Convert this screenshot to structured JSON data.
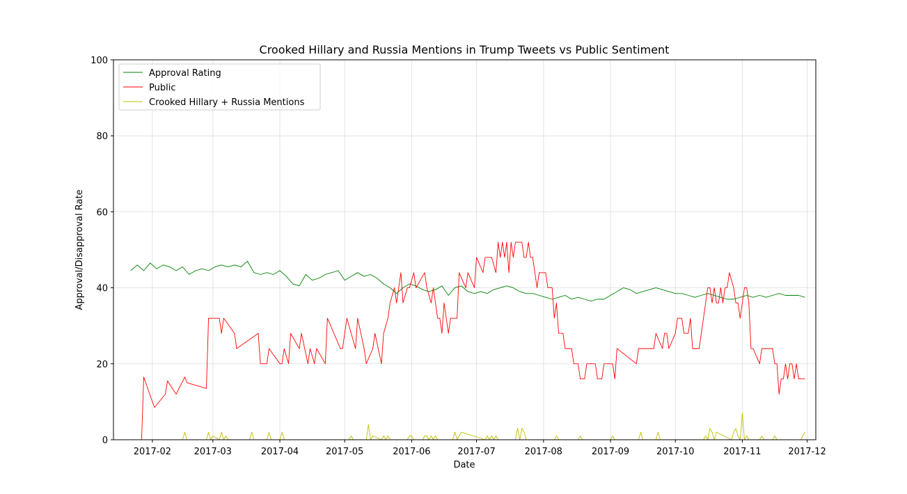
{
  "chart_data": {
    "type": "line",
    "title": "Crooked Hillary and Russia Mentions in Trump Tweets vs Public Sentiment",
    "xlabel": "Date",
    "ylabel": "Approval/Disapproval Rate",
    "xlim": [
      "2017-01-14",
      "2017-12-05"
    ],
    "ylim": [
      0,
      100
    ],
    "grid": true,
    "legend_position": "top-left",
    "x_ticks": [
      "2017-02-01",
      "2017-03-01",
      "2017-04-01",
      "2017-05-01",
      "2017-06-01",
      "2017-07-01",
      "2017-08-01",
      "2017-09-01",
      "2017-10-01",
      "2017-11-01",
      "2017-12-01"
    ],
    "x_tick_labels": [
      "2017-02",
      "2017-03",
      "2017-04",
      "2017-05",
      "2017-06",
      "2017-07",
      "2017-08",
      "2017-09",
      "2017-10",
      "2017-11",
      "2017-12"
    ],
    "y_ticks": [
      0,
      20,
      40,
      60,
      80,
      100
    ],
    "y_tick_labels": [
      "0",
      "20",
      "40",
      "60",
      "80",
      "100"
    ],
    "series": [
      {
        "name": "Approval Rating",
        "color": "#008000",
        "x": [
          "2017-01-22",
          "2017-01-25",
          "2017-01-28",
          "2017-01-31",
          "2017-02-03",
          "2017-02-06",
          "2017-02-09",
          "2017-02-12",
          "2017-02-15",
          "2017-02-18",
          "2017-02-21",
          "2017-02-24",
          "2017-02-27",
          "2017-03-02",
          "2017-03-05",
          "2017-03-08",
          "2017-03-11",
          "2017-03-14",
          "2017-03-17",
          "2017-03-20",
          "2017-03-23",
          "2017-03-26",
          "2017-03-29",
          "2017-04-01",
          "2017-04-04",
          "2017-04-07",
          "2017-04-10",
          "2017-04-13",
          "2017-04-16",
          "2017-04-19",
          "2017-04-22",
          "2017-04-25",
          "2017-04-28",
          "2017-05-01",
          "2017-05-04",
          "2017-05-07",
          "2017-05-10",
          "2017-05-13",
          "2017-05-16",
          "2017-05-19",
          "2017-05-22",
          "2017-05-25",
          "2017-05-28",
          "2017-05-31",
          "2017-06-03",
          "2017-06-06",
          "2017-06-09",
          "2017-06-12",
          "2017-06-15",
          "2017-06-18",
          "2017-06-21",
          "2017-06-24",
          "2017-06-27",
          "2017-06-30",
          "2017-07-03",
          "2017-07-06",
          "2017-07-09",
          "2017-07-12",
          "2017-07-15",
          "2017-07-18",
          "2017-07-21",
          "2017-07-24",
          "2017-07-27",
          "2017-07-30",
          "2017-08-02",
          "2017-08-05",
          "2017-08-08",
          "2017-08-11",
          "2017-08-14",
          "2017-08-17",
          "2017-08-20",
          "2017-08-23",
          "2017-08-26",
          "2017-08-29",
          "2017-09-01",
          "2017-09-04",
          "2017-09-07",
          "2017-09-10",
          "2017-09-13",
          "2017-09-16",
          "2017-09-19",
          "2017-09-22",
          "2017-09-25",
          "2017-09-28",
          "2017-10-01",
          "2017-10-04",
          "2017-10-07",
          "2017-10-10",
          "2017-10-13",
          "2017-10-16",
          "2017-10-19",
          "2017-10-22",
          "2017-10-25",
          "2017-10-28",
          "2017-10-31",
          "2017-11-03",
          "2017-11-06",
          "2017-11-09",
          "2017-11-12",
          "2017-11-15",
          "2017-11-18",
          "2017-11-21",
          "2017-11-24",
          "2017-11-27",
          "2017-11-30"
        ],
        "values": [
          44.5,
          46,
          44.5,
          46.5,
          45,
          46,
          45.5,
          44.5,
          45.5,
          43.5,
          44.5,
          45,
          44.5,
          45.5,
          46,
          45.5,
          46,
          45.5,
          47,
          44,
          43.5,
          44,
          43.5,
          44.5,
          43,
          41,
          40.5,
          43.5,
          42,
          42.5,
          43.5,
          44,
          44.5,
          42,
          43,
          44,
          43,
          43.5,
          42.5,
          41,
          40,
          38.5,
          40,
          41,
          40.5,
          39.5,
          39,
          39.5,
          40.5,
          38,
          40,
          40.5,
          39,
          38.5,
          39,
          38.5,
          39.5,
          40,
          40.5,
          40,
          39,
          38.5,
          38.5,
          38,
          37.5,
          37,
          37.5,
          38,
          37,
          37.5,
          37,
          36.5,
          37,
          37,
          38,
          39,
          40,
          39.5,
          38.5,
          39,
          39.5,
          40,
          39.5,
          39,
          38.5,
          38.5,
          38,
          37.5,
          38,
          38.5,
          38,
          37.5,
          37,
          37,
          37.5,
          38,
          37.5,
          38,
          37.5,
          38,
          38.5,
          38,
          38,
          38,
          37.5
        ]
      },
      {
        "name": "Public",
        "color": "#ff0000",
        "x": [
          "2017-01-20",
          "2017-01-27",
          "2017-01-28",
          "2017-02-01",
          "2017-02-02",
          "2017-02-07",
          "2017-02-08",
          "2017-02-12",
          "2017-02-16",
          "2017-02-17",
          "2017-02-26",
          "2017-02-27",
          "2017-03-04",
          "2017-03-05",
          "2017-03-06",
          "2017-03-11",
          "2017-03-12",
          "2017-03-22",
          "2017-03-23",
          "2017-03-26",
          "2017-03-27",
          "2017-04-01",
          "2017-04-02",
          "2017-04-03",
          "2017-04-05",
          "2017-04-06",
          "2017-04-10",
          "2017-04-11",
          "2017-04-14",
          "2017-04-15",
          "2017-04-17",
          "2017-04-18",
          "2017-04-22",
          "2017-04-23",
          "2017-04-29",
          "2017-04-30",
          "2017-05-01",
          "2017-05-02",
          "2017-05-06",
          "2017-05-07",
          "2017-05-10",
          "2017-05-11",
          "2017-05-14",
          "2017-05-15",
          "2017-05-18",
          "2017-05-19",
          "2017-05-21",
          "2017-05-22",
          "2017-05-24",
          "2017-05-25",
          "2017-05-26",
          "2017-05-27",
          "2017-05-28",
          "2017-05-30",
          "2017-05-31",
          "2017-06-02",
          "2017-06-03",
          "2017-06-07",
          "2017-06-08",
          "2017-06-10",
          "2017-06-11",
          "2017-06-12",
          "2017-06-13",
          "2017-06-14",
          "2017-06-15",
          "2017-06-16",
          "2017-06-18",
          "2017-06-19",
          "2017-06-22",
          "2017-06-23",
          "2017-06-26",
          "2017-06-27",
          "2017-06-30",
          "2017-07-01",
          "2017-07-04",
          "2017-07-05",
          "2017-07-07",
          "2017-07-08",
          "2017-07-10",
          "2017-07-11",
          "2017-07-12",
          "2017-07-13",
          "2017-07-14",
          "2017-07-15",
          "2017-07-16",
          "2017-07-17",
          "2017-07-18",
          "2017-07-19",
          "2017-07-22",
          "2017-07-23",
          "2017-07-24",
          "2017-07-25",
          "2017-07-26",
          "2017-07-27",
          "2017-07-29",
          "2017-07-30",
          "2017-08-02",
          "2017-08-03",
          "2017-08-05",
          "2017-08-06",
          "2017-08-07",
          "2017-08-08",
          "2017-08-10",
          "2017-08-11",
          "2017-08-14",
          "2017-08-15",
          "2017-08-17",
          "2017-08-18",
          "2017-08-20",
          "2017-08-21",
          "2017-08-25",
          "2017-08-26",
          "2017-08-28",
          "2017-08-29",
          "2017-09-02",
          "2017-09-03",
          "2017-09-04",
          "2017-09-13",
          "2017-09-14",
          "2017-09-21",
          "2017-09-22",
          "2017-09-25",
          "2017-09-26",
          "2017-09-27",
          "2017-09-28",
          "2017-10-01",
          "2017-10-02",
          "2017-10-04",
          "2017-10-05",
          "2017-10-07",
          "2017-10-08",
          "2017-10-09",
          "2017-10-10",
          "2017-10-12",
          "2017-10-13",
          "2017-10-16",
          "2017-10-17",
          "2017-10-18",
          "2017-10-19",
          "2017-10-20",
          "2017-10-21",
          "2017-10-22",
          "2017-10-23",
          "2017-10-24",
          "2017-10-25",
          "2017-10-26",
          "2017-10-28",
          "2017-10-29",
          "2017-10-30",
          "2017-10-31",
          "2017-11-02",
          "2017-11-03",
          "2017-11-04",
          "2017-11-05",
          "2017-11-06",
          "2017-11-09",
          "2017-11-10",
          "2017-11-15",
          "2017-11-16",
          "2017-11-17",
          "2017-11-18",
          "2017-11-19",
          "2017-11-20",
          "2017-11-21",
          "2017-11-22",
          "2017-11-23",
          "2017-11-24",
          "2017-11-25",
          "2017-11-26",
          "2017-11-27",
          "2017-11-28",
          "2017-11-29",
          "2017-11-30"
        ],
        "values": [
          0,
          0,
          16.5,
          10,
          8.5,
          12,
          15.5,
          12,
          16.5,
          15,
          13.5,
          32,
          32,
          28,
          32,
          28,
          24,
          28,
          20,
          20,
          24,
          20,
          20,
          24,
          20,
          28,
          24,
          28,
          20,
          24,
          20,
          24,
          20,
          32,
          24,
          24,
          28,
          32,
          24,
          32,
          24,
          20,
          24,
          28,
          20,
          28,
          32,
          36,
          40,
          36,
          40,
          44,
          36,
          40,
          40,
          44,
          40,
          44,
          40,
          36,
          40,
          36,
          32,
          32,
          28,
          36,
          28,
          32,
          32,
          44,
          40,
          44,
          40,
          48,
          44,
          48,
          48,
          48,
          44,
          52,
          48,
          52,
          48,
          52,
          44,
          52,
          48,
          52,
          52,
          48,
          48,
          52,
          48,
          48,
          40,
          44,
          44,
          40,
          40,
          32,
          36,
          28,
          28,
          24,
          24,
          20,
          20,
          16,
          16,
          20,
          20,
          16,
          16,
          20,
          20,
          16,
          24,
          20,
          24,
          24,
          28,
          24,
          28,
          28,
          24,
          28,
          32,
          32,
          28,
          28,
          32,
          24,
          24,
          24,
          28,
          40,
          40,
          36,
          40,
          36,
          36,
          40,
          36,
          40,
          40,
          44,
          40,
          36,
          36,
          32,
          40,
          40,
          36,
          24,
          24,
          20,
          24,
          24,
          20,
          20,
          12,
          16,
          16,
          20,
          16,
          20,
          20,
          16,
          20,
          16,
          16,
          16,
          16
        ]
      },
      {
        "name": "Crooked Hillary + Russia Mentions",
        "color": "#bfbf00",
        "x": [
          "2017-01-20",
          "2017-02-15",
          "2017-02-16",
          "2017-02-17",
          "2017-02-26",
          "2017-02-27",
          "2017-02-28",
          "2017-03-01",
          "2017-03-04",
          "2017-03-05",
          "2017-03-06",
          "2017-03-07",
          "2017-03-08",
          "2017-03-18",
          "2017-03-19",
          "2017-03-20",
          "2017-03-26",
          "2017-03-27",
          "2017-03-28",
          "2017-04-01",
          "2017-04-02",
          "2017-04-03",
          "2017-05-03",
          "2017-05-04",
          "2017-05-05",
          "2017-05-11",
          "2017-05-12",
          "2017-05-13",
          "2017-05-14",
          "2017-05-18",
          "2017-05-19",
          "2017-05-20",
          "2017-05-21",
          "2017-05-22",
          "2017-05-30",
          "2017-05-31",
          "2017-06-01",
          "2017-06-02",
          "2017-06-06",
          "2017-06-07",
          "2017-06-08",
          "2017-06-09",
          "2017-06-10",
          "2017-06-11",
          "2017-06-12",
          "2017-06-13",
          "2017-06-20",
          "2017-06-21",
          "2017-06-22",
          "2017-06-23",
          "2017-06-24",
          "2017-07-05",
          "2017-07-06",
          "2017-07-07",
          "2017-07-08",
          "2017-07-09",
          "2017-07-10",
          "2017-07-11",
          "2017-07-19",
          "2017-07-20",
          "2017-07-21",
          "2017-07-22",
          "2017-07-23",
          "2017-07-24",
          "2017-07-25",
          "2017-08-06",
          "2017-08-07",
          "2017-08-08",
          "2017-08-17",
          "2017-08-18",
          "2017-08-19",
          "2017-09-01",
          "2017-09-02",
          "2017-09-03",
          "2017-09-14",
          "2017-09-15",
          "2017-09-16",
          "2017-09-22",
          "2017-09-23",
          "2017-09-24",
          "2017-10-14",
          "2017-10-15",
          "2017-10-16",
          "2017-10-17",
          "2017-10-18",
          "2017-10-19",
          "2017-10-20",
          "2017-10-27",
          "2017-10-28",
          "2017-10-29",
          "2017-10-30",
          "2017-10-31",
          "2017-11-01",
          "2017-11-02",
          "2017-11-03",
          "2017-11-04",
          "2017-11-09",
          "2017-11-10",
          "2017-11-11",
          "2017-11-15",
          "2017-11-16",
          "2017-11-17",
          "2017-11-28",
          "2017-11-29",
          "2017-11-30"
        ],
        "values": [
          0,
          0,
          2,
          0,
          0,
          2,
          0,
          1,
          0,
          2,
          0,
          1,
          0,
          0,
          2,
          0,
          0,
          2,
          0,
          0,
          2,
          0,
          0,
          1,
          0,
          0,
          4,
          0,
          1,
          0,
          1,
          0,
          1,
          0,
          0,
          1,
          1,
          0,
          0,
          1,
          1,
          0,
          1,
          0,
          1,
          0,
          0,
          2,
          0,
          1,
          2,
          0,
          1,
          0,
          1,
          0,
          1,
          0,
          0,
          3,
          0,
          3,
          2,
          0,
          0,
          0,
          1,
          0,
          0,
          1,
          0,
          0,
          1,
          0,
          0,
          2,
          0,
          0,
          2,
          0,
          0,
          1,
          0,
          3,
          2,
          0,
          2,
          0,
          2,
          3,
          1,
          0,
          7,
          0,
          1,
          0,
          0,
          1,
          0,
          0,
          1,
          0,
          0,
          1,
          2
        ]
      }
    ]
  }
}
